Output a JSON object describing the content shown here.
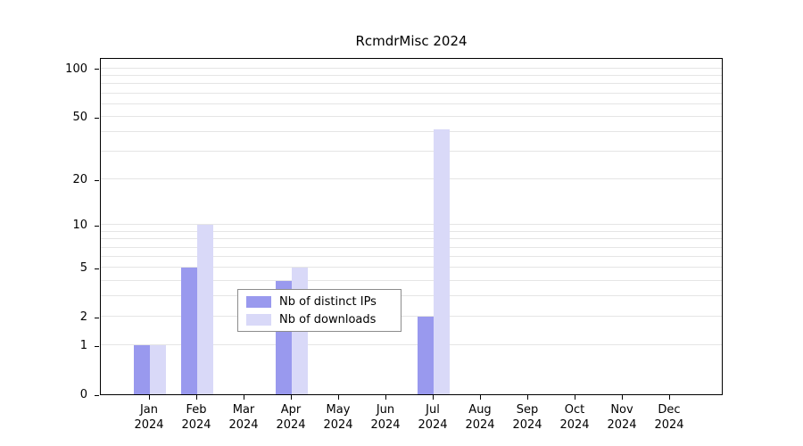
{
  "title": "RcmdrMisc 2024",
  "colors": {
    "ips": "#9999ee",
    "downloads": "#d9d9f8",
    "grid": "#e5e5e5",
    "axis": "#000000",
    "legend_border": "#8c8c8c",
    "background": "#ffffff"
  },
  "chart_data": {
    "type": "bar",
    "scale": "log1p",
    "title": "RcmdrMisc 2024",
    "categories": [
      "Jan",
      "Feb",
      "Mar",
      "Apr",
      "May",
      "Jun",
      "Jul",
      "Aug",
      "Sep",
      "Oct",
      "Nov",
      "Dec"
    ],
    "year": "2024",
    "series": [
      {
        "name": "Nb of distinct IPs",
        "color": "#9999ee",
        "values": [
          1,
          5,
          0,
          4,
          0,
          0,
          2,
          0,
          0,
          0,
          0,
          0
        ]
      },
      {
        "name": "Nb of downloads",
        "color": "#d9d9f8",
        "values": [
          1,
          10,
          0,
          5,
          0,
          0,
          42,
          0,
          0,
          0,
          0,
          0
        ]
      }
    ],
    "yticks": [
      0,
      1,
      2,
      5,
      10,
      20,
      50,
      100
    ],
    "ylim": [
      0,
      118
    ],
    "grid_values": [
      1,
      2,
      3,
      4,
      5,
      6,
      7,
      8,
      9,
      10,
      20,
      30,
      40,
      50,
      60,
      70,
      80,
      90,
      100
    ],
    "grid": "on",
    "legend_position": "bottom-center",
    "xlabel": "",
    "ylabel": ""
  }
}
